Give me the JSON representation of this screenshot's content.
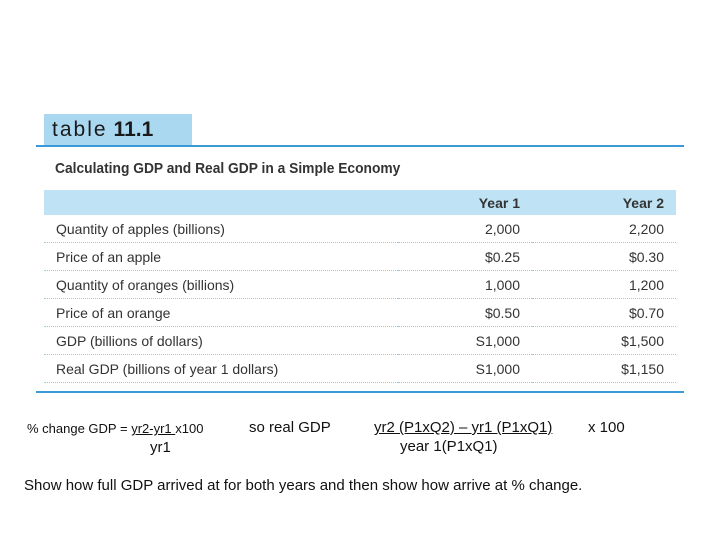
{
  "table_tag": {
    "word": "table",
    "number": "11.1"
  },
  "caption": "Calculating GDP and Real GDP in a Simple Economy",
  "table": {
    "headers": [
      "",
      "Year 1",
      "Year 2"
    ],
    "rows": [
      {
        "label": "Quantity of apples (billions)",
        "year1": "2,000",
        "year2": "2,200"
      },
      {
        "label": "Price of an apple",
        "year1": "$0.25",
        "year2": "$0.30"
      },
      {
        "label": "Quantity of oranges (billions)",
        "year1": "1,000",
        "year2": "1,200"
      },
      {
        "label": "Price of an orange",
        "year1": "$0.50",
        "year2": "$0.70"
      },
      {
        "label": "GDP (billions of dollars)",
        "year1": "S1,000",
        "year2": "$1,500"
      },
      {
        "label": "Real GDP (billions of year 1 dollars)",
        "year1": "S1,000",
        "year2": "$1,150"
      }
    ]
  },
  "formula": {
    "label_prefix": "% change GDP = ",
    "numerator1": "yr2-yr1 ",
    "times1": "x100",
    "denominator1": "yr1",
    "so_real": "so real GDP",
    "numerator2": "yr2 (P1xQ2) – yr1 (P1xQ1)",
    "times2": "x 100",
    "denominator2": "year 1(P1xQ1)"
  },
  "instruction": "Show how full GDP arrived at for both years and then show how arrive at % change."
}
